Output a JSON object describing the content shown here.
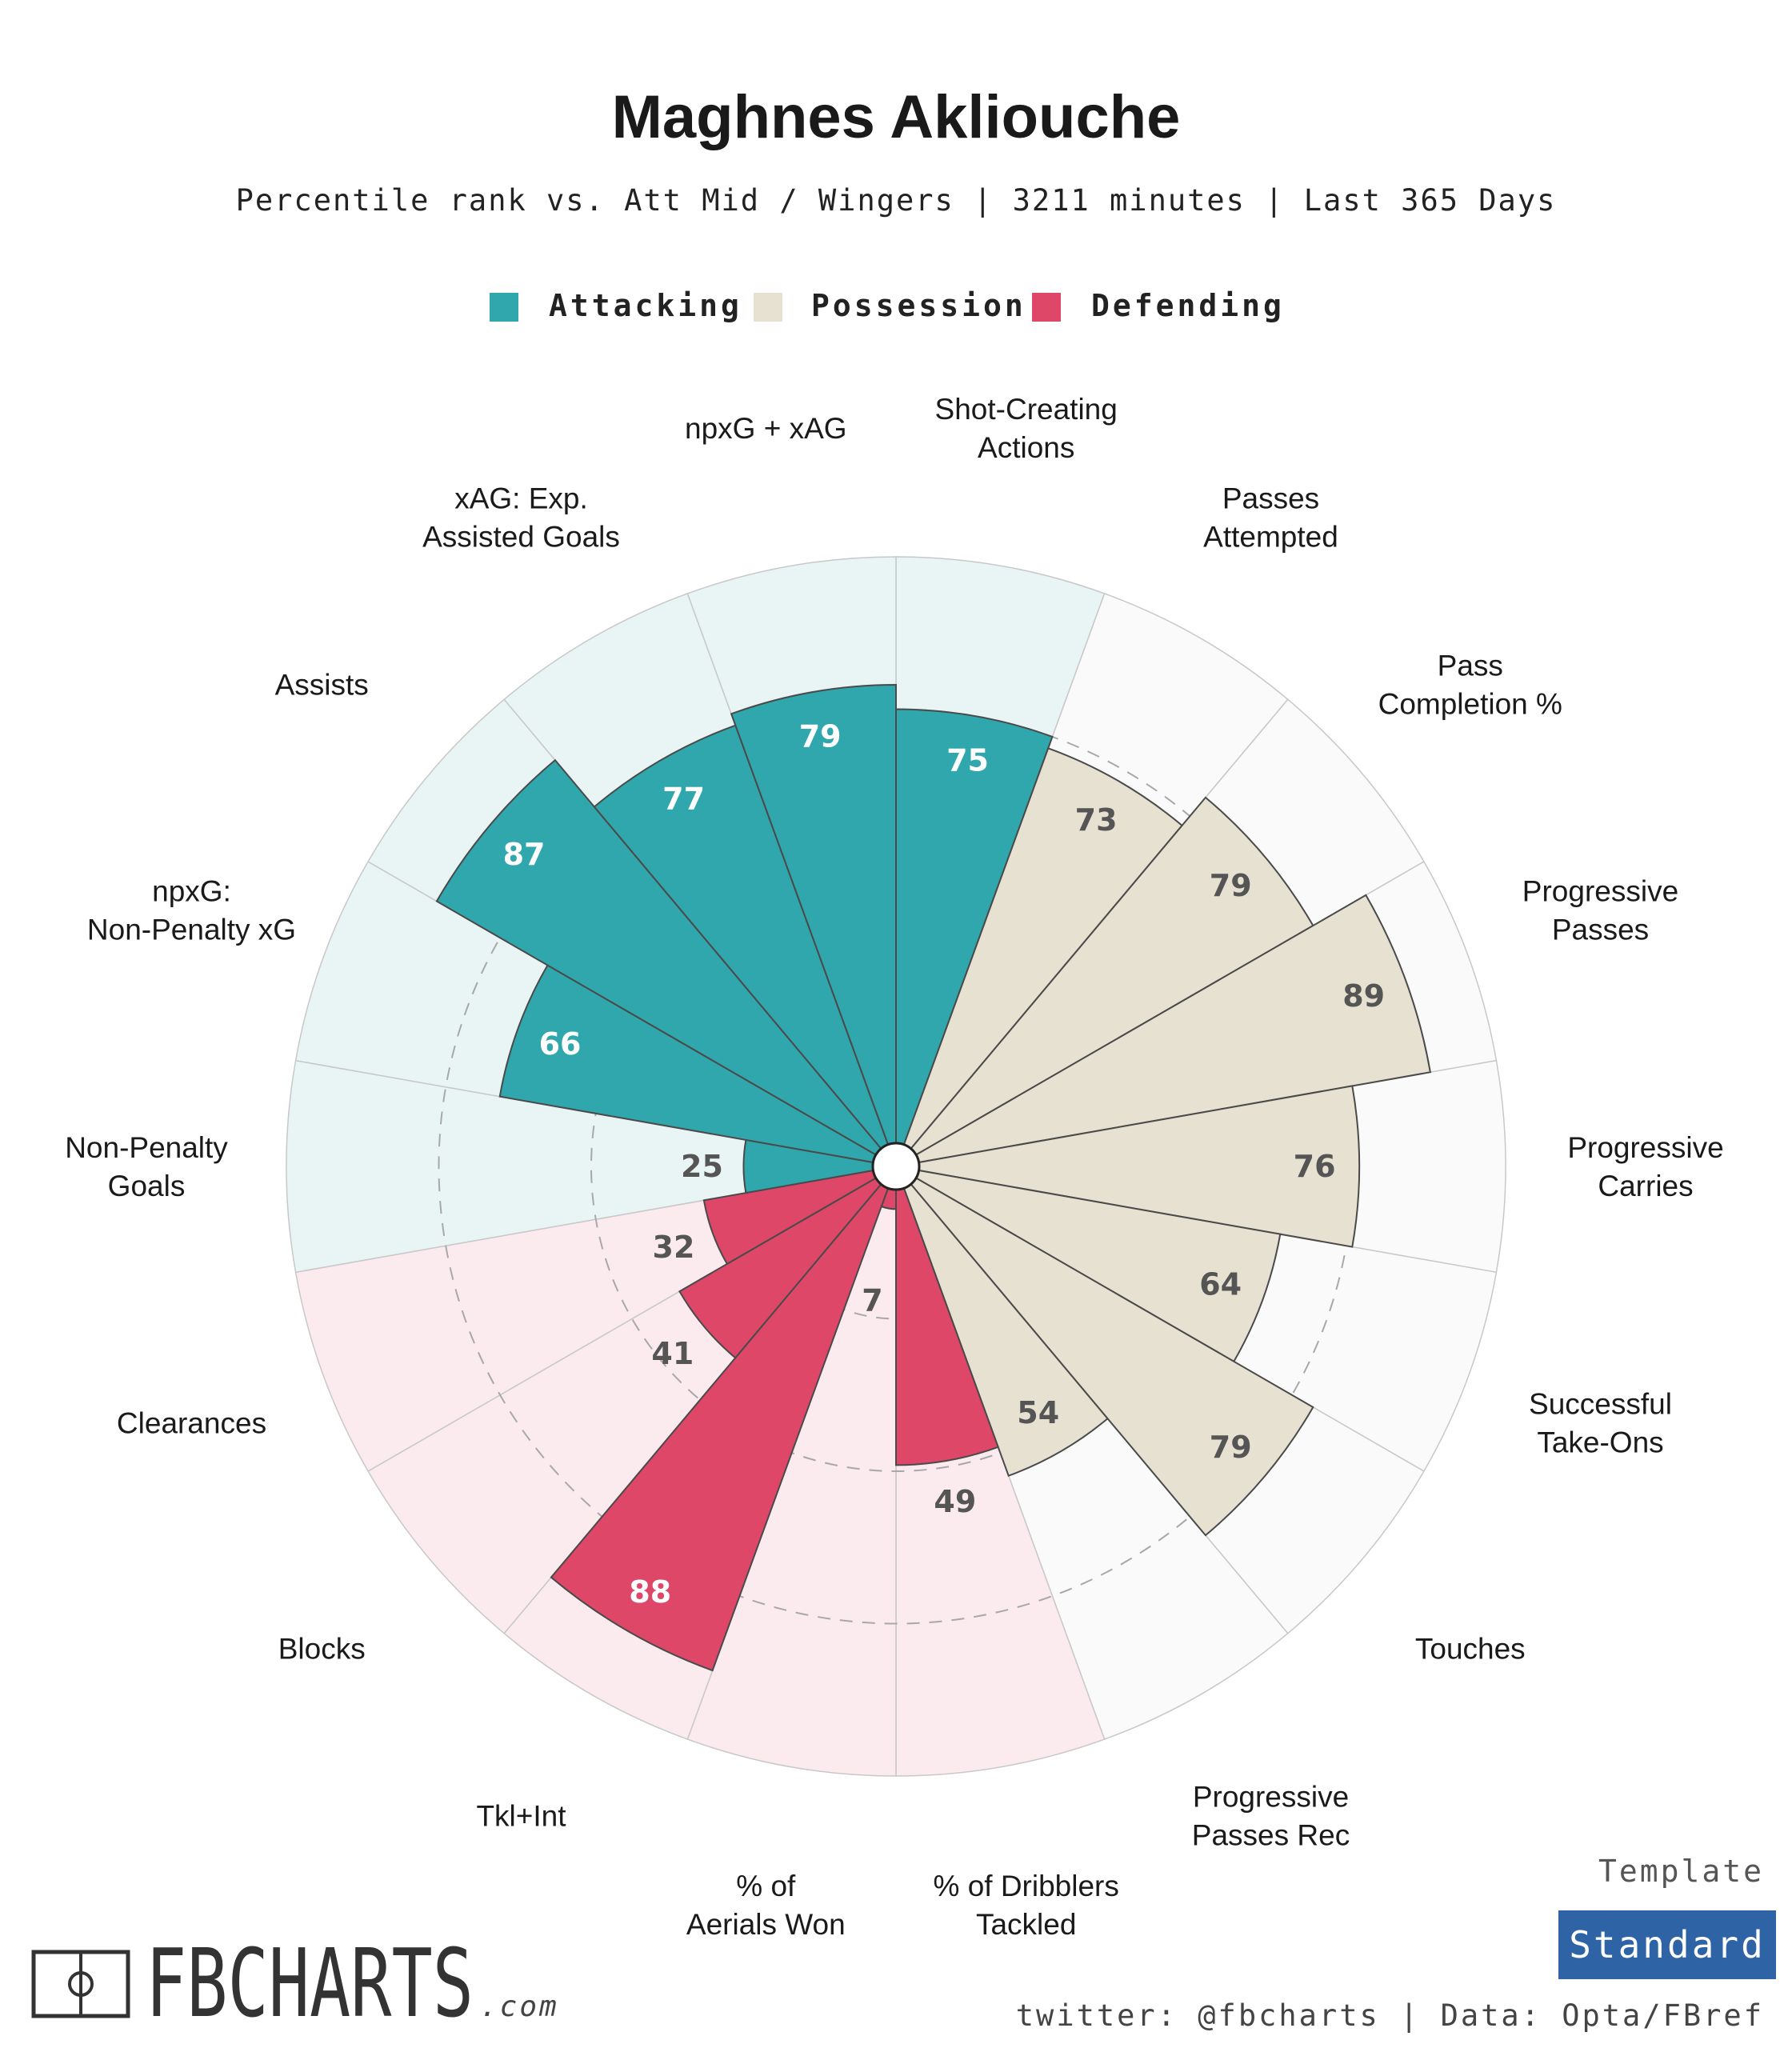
{
  "title": "Maghnes Akliouche",
  "subtitle": "Percentile rank vs. Att Mid / Wingers | 3211 minutes | Last 365 Days",
  "legend": [
    {
      "label": "Attacking",
      "color": "#2fa7ad"
    },
    {
      "label": "Possession",
      "color": "#e7e1d1"
    },
    {
      "label": "Defending",
      "color": "#de4768"
    }
  ],
  "colors": {
    "Attacking": {
      "fill": "#2fa7ad",
      "bg": "#e8f5f4",
      "text": "#ffffff"
    },
    "Possession": {
      "fill": "#e7e1d1",
      "bg": "#fafafa",
      "text": "#555555"
    },
    "Defending": {
      "fill": "#de4768",
      "bg": "#fbebef",
      "text": "#ffffff"
    },
    "low_value_text": "#555555"
  },
  "chart_data": {
    "type": "polar-bar",
    "title": "Maghnes Akliouche",
    "rmax": 100,
    "rings": [
      25,
      50,
      75
    ],
    "grid": true,
    "legend_position": "top",
    "metrics": [
      {
        "label": "Shot-Creating Actions",
        "category": "Attacking",
        "value": 75
      },
      {
        "label": "Passes Attempted",
        "category": "Possession",
        "value": 73
      },
      {
        "label": "Pass Completion %",
        "category": "Possession",
        "value": 79
      },
      {
        "label": "Progressive Passes",
        "category": "Possession",
        "value": 89
      },
      {
        "label": "Progressive Carries",
        "category": "Possession",
        "value": 76
      },
      {
        "label": "Successful Take-Ons",
        "category": "Possession",
        "value": 64
      },
      {
        "label": "Touches",
        "category": "Possession",
        "value": 79
      },
      {
        "label": "Progressive Passes Rec",
        "category": "Possession",
        "value": 54
      },
      {
        "label": "% of Dribblers Tackled",
        "category": "Defending",
        "value": 49
      },
      {
        "label": "% of Aerials Won",
        "category": "Defending",
        "value": 7
      },
      {
        "label": "Tkl+Int",
        "category": "Defending",
        "value": 88
      },
      {
        "label": "Blocks",
        "category": "Defending",
        "value": 41
      },
      {
        "label": "Clearances",
        "category": "Defending",
        "value": 32
      },
      {
        "label": "Non-Penalty Goals",
        "category": "Attacking",
        "value": 25
      },
      {
        "label": "npxG: Non-Penalty xG",
        "category": "Attacking",
        "value": 66
      },
      {
        "label": "Assists",
        "category": "Attacking",
        "value": 87
      },
      {
        "label": "xAG: Exp. Assisted Goals",
        "category": "Attacking",
        "value": 77
      },
      {
        "label": "npxG + xAG",
        "category": "Attacking",
        "value": 79
      }
    ]
  },
  "footer": {
    "logo_text": "FBCHARTS",
    "logo_suffix": ".com",
    "template_label": "Template",
    "template_value": "Standard",
    "template_color": "#2e64a6",
    "credit": "twitter: @fbcharts | Data: Opta/FBref"
  }
}
